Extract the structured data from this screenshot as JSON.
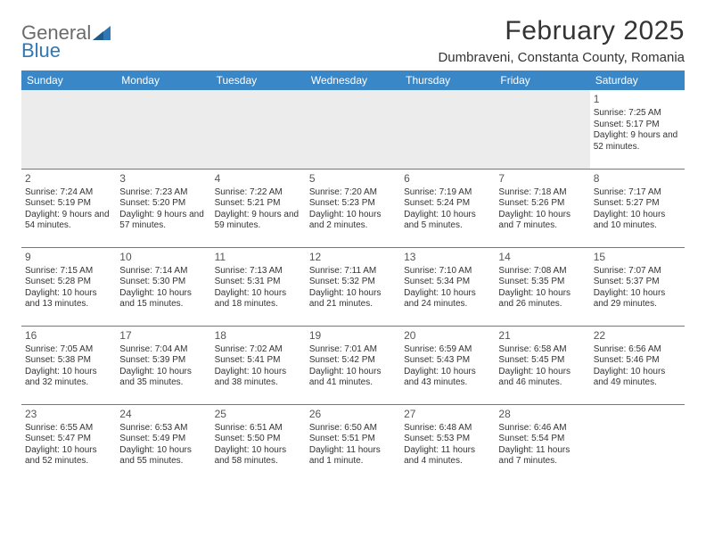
{
  "logo": {
    "general": "General",
    "blue": "Blue"
  },
  "title": "February 2025",
  "location": "Dumbraveni, Constanta County, Romania",
  "dayHeaders": [
    "Sunday",
    "Monday",
    "Tuesday",
    "Wednesday",
    "Thursday",
    "Friday",
    "Saturday"
  ],
  "styles": {
    "header_bg": "#3a87c8",
    "header_fg": "#ffffff",
    "border_color": "#6a7a8a",
    "empty_bg": "#ececec",
    "text_color": "#333333",
    "title_fontsize": 30,
    "location_fontsize": 15,
    "dayheader_fontsize": 12,
    "cell_fontsize": 10
  },
  "weeks": [
    [
      null,
      null,
      null,
      null,
      null,
      null,
      {
        "n": "1",
        "sunrise": "Sunrise: 7:25 AM",
        "sunset": "Sunset: 5:17 PM",
        "daylight": "Daylight: 9 hours and 52 minutes."
      }
    ],
    [
      {
        "n": "2",
        "sunrise": "Sunrise: 7:24 AM",
        "sunset": "Sunset: 5:19 PM",
        "daylight": "Daylight: 9 hours and 54 minutes."
      },
      {
        "n": "3",
        "sunrise": "Sunrise: 7:23 AM",
        "sunset": "Sunset: 5:20 PM",
        "daylight": "Daylight: 9 hours and 57 minutes."
      },
      {
        "n": "4",
        "sunrise": "Sunrise: 7:22 AM",
        "sunset": "Sunset: 5:21 PM",
        "daylight": "Daylight: 9 hours and 59 minutes."
      },
      {
        "n": "5",
        "sunrise": "Sunrise: 7:20 AM",
        "sunset": "Sunset: 5:23 PM",
        "daylight": "Daylight: 10 hours and 2 minutes."
      },
      {
        "n": "6",
        "sunrise": "Sunrise: 7:19 AM",
        "sunset": "Sunset: 5:24 PM",
        "daylight": "Daylight: 10 hours and 5 minutes."
      },
      {
        "n": "7",
        "sunrise": "Sunrise: 7:18 AM",
        "sunset": "Sunset: 5:26 PM",
        "daylight": "Daylight: 10 hours and 7 minutes."
      },
      {
        "n": "8",
        "sunrise": "Sunrise: 7:17 AM",
        "sunset": "Sunset: 5:27 PM",
        "daylight": "Daylight: 10 hours and 10 minutes."
      }
    ],
    [
      {
        "n": "9",
        "sunrise": "Sunrise: 7:15 AM",
        "sunset": "Sunset: 5:28 PM",
        "daylight": "Daylight: 10 hours and 13 minutes."
      },
      {
        "n": "10",
        "sunrise": "Sunrise: 7:14 AM",
        "sunset": "Sunset: 5:30 PM",
        "daylight": "Daylight: 10 hours and 15 minutes."
      },
      {
        "n": "11",
        "sunrise": "Sunrise: 7:13 AM",
        "sunset": "Sunset: 5:31 PM",
        "daylight": "Daylight: 10 hours and 18 minutes."
      },
      {
        "n": "12",
        "sunrise": "Sunrise: 7:11 AM",
        "sunset": "Sunset: 5:32 PM",
        "daylight": "Daylight: 10 hours and 21 minutes."
      },
      {
        "n": "13",
        "sunrise": "Sunrise: 7:10 AM",
        "sunset": "Sunset: 5:34 PM",
        "daylight": "Daylight: 10 hours and 24 minutes."
      },
      {
        "n": "14",
        "sunrise": "Sunrise: 7:08 AM",
        "sunset": "Sunset: 5:35 PM",
        "daylight": "Daylight: 10 hours and 26 minutes."
      },
      {
        "n": "15",
        "sunrise": "Sunrise: 7:07 AM",
        "sunset": "Sunset: 5:37 PM",
        "daylight": "Daylight: 10 hours and 29 minutes."
      }
    ],
    [
      {
        "n": "16",
        "sunrise": "Sunrise: 7:05 AM",
        "sunset": "Sunset: 5:38 PM",
        "daylight": "Daylight: 10 hours and 32 minutes."
      },
      {
        "n": "17",
        "sunrise": "Sunrise: 7:04 AM",
        "sunset": "Sunset: 5:39 PM",
        "daylight": "Daylight: 10 hours and 35 minutes."
      },
      {
        "n": "18",
        "sunrise": "Sunrise: 7:02 AM",
        "sunset": "Sunset: 5:41 PM",
        "daylight": "Daylight: 10 hours and 38 minutes."
      },
      {
        "n": "19",
        "sunrise": "Sunrise: 7:01 AM",
        "sunset": "Sunset: 5:42 PM",
        "daylight": "Daylight: 10 hours and 41 minutes."
      },
      {
        "n": "20",
        "sunrise": "Sunrise: 6:59 AM",
        "sunset": "Sunset: 5:43 PM",
        "daylight": "Daylight: 10 hours and 43 minutes."
      },
      {
        "n": "21",
        "sunrise": "Sunrise: 6:58 AM",
        "sunset": "Sunset: 5:45 PM",
        "daylight": "Daylight: 10 hours and 46 minutes."
      },
      {
        "n": "22",
        "sunrise": "Sunrise: 6:56 AM",
        "sunset": "Sunset: 5:46 PM",
        "daylight": "Daylight: 10 hours and 49 minutes."
      }
    ],
    [
      {
        "n": "23",
        "sunrise": "Sunrise: 6:55 AM",
        "sunset": "Sunset: 5:47 PM",
        "daylight": "Daylight: 10 hours and 52 minutes."
      },
      {
        "n": "24",
        "sunrise": "Sunrise: 6:53 AM",
        "sunset": "Sunset: 5:49 PM",
        "daylight": "Daylight: 10 hours and 55 minutes."
      },
      {
        "n": "25",
        "sunrise": "Sunrise: 6:51 AM",
        "sunset": "Sunset: 5:50 PM",
        "daylight": "Daylight: 10 hours and 58 minutes."
      },
      {
        "n": "26",
        "sunrise": "Sunrise: 6:50 AM",
        "sunset": "Sunset: 5:51 PM",
        "daylight": "Daylight: 11 hours and 1 minute."
      },
      {
        "n": "27",
        "sunrise": "Sunrise: 6:48 AM",
        "sunset": "Sunset: 5:53 PM",
        "daylight": "Daylight: 11 hours and 4 minutes."
      },
      {
        "n": "28",
        "sunrise": "Sunrise: 6:46 AM",
        "sunset": "Sunset: 5:54 PM",
        "daylight": "Daylight: 11 hours and 7 minutes."
      },
      null
    ]
  ]
}
